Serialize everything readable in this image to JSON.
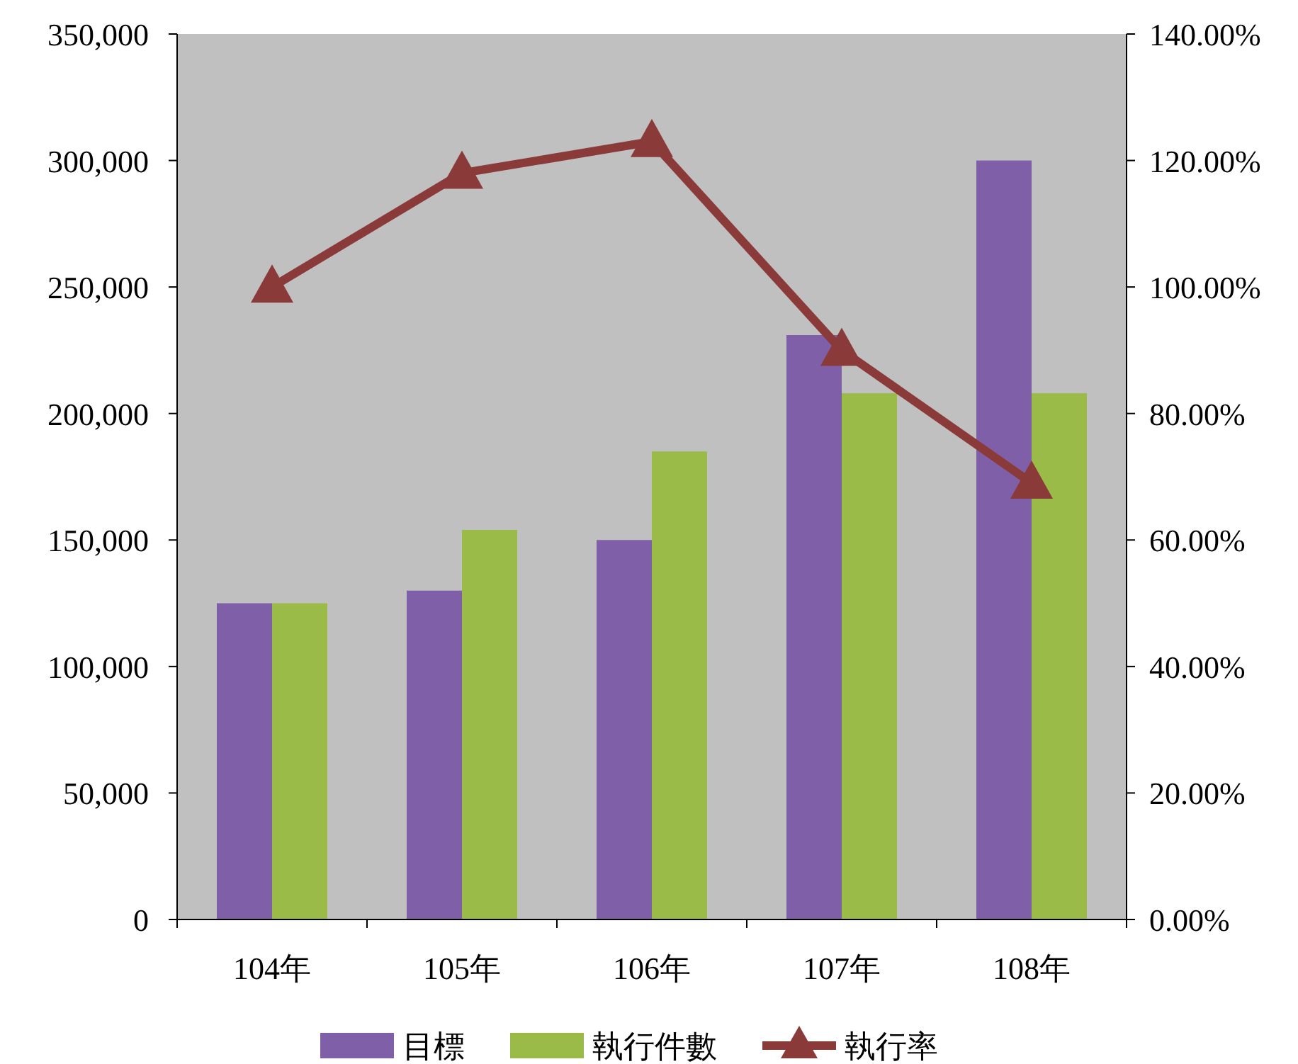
{
  "chart_data": {
    "type": "bar",
    "categories": [
      "104年",
      "105年",
      "106年",
      "107年",
      "108年"
    ],
    "series": [
      {
        "name": "目標",
        "color": "#7f5fa8",
        "values": [
          125000,
          130000,
          150000,
          231000,
          300000
        ]
      },
      {
        "name": "執行件數",
        "color": "#9bbb49",
        "values": [
          125000,
          154000,
          185000,
          208000,
          208000
        ]
      },
      {
        "name": "執行率",
        "type": "line",
        "axis": "y2",
        "color": "#8b3a3a",
        "marker": "triangle",
        "values": [
          100,
          118,
          123,
          90,
          69
        ]
      }
    ],
    "ylim": [
      0,
      350000
    ],
    "yticks": [
      {
        "value": 0,
        "label": "0"
      },
      {
        "value": 50000,
        "label": "50,000"
      },
      {
        "value": 100000,
        "label": "100,000"
      },
      {
        "value": 150000,
        "label": "150,000"
      },
      {
        "value": 200000,
        "label": "200,000"
      },
      {
        "value": 250000,
        "label": "250,000"
      },
      {
        "value": 300000,
        "label": "300,000"
      },
      {
        "value": 350000,
        "label": "350,000"
      }
    ],
    "y2lim": [
      0,
      140
    ],
    "y2ticks": [
      {
        "value": 0,
        "label": "0.00%"
      },
      {
        "value": 20,
        "label": "20.00%"
      },
      {
        "value": 40,
        "label": "40.00%"
      },
      {
        "value": 60,
        "label": "60.00%"
      },
      {
        "value": 80,
        "label": "80.00%"
      },
      {
        "value": 100,
        "label": "100.00%"
      },
      {
        "value": 120,
        "label": "120.00%"
      },
      {
        "value": 140,
        "label": "140.00%"
      }
    ],
    "legend": "bottom"
  }
}
